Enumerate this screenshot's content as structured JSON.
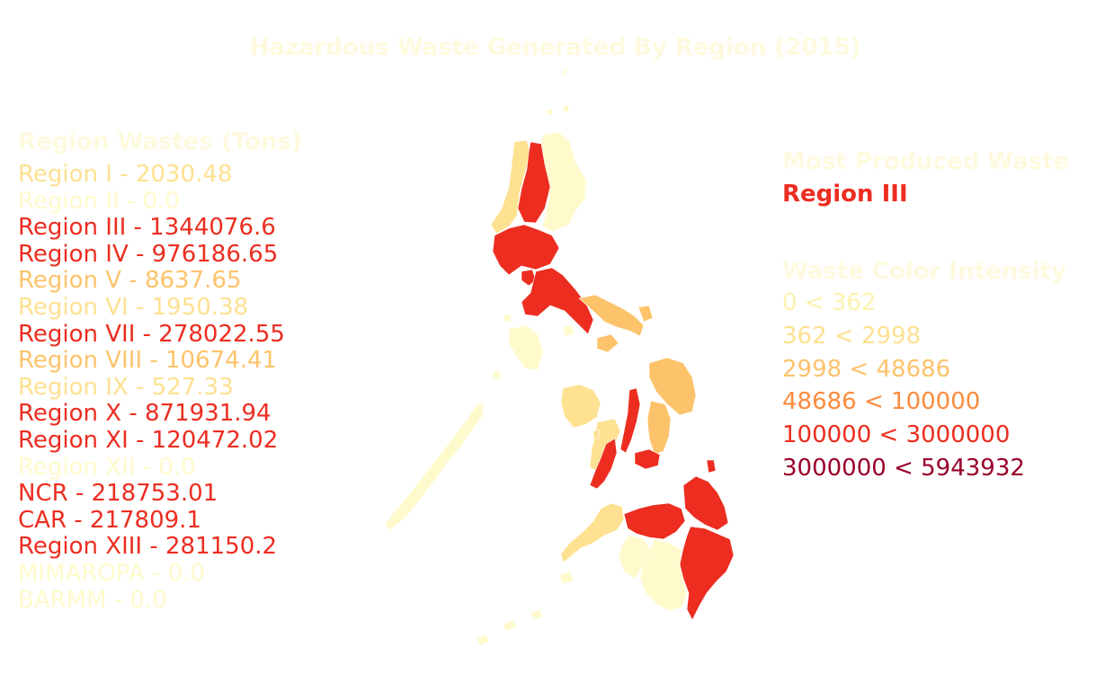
{
  "title": "Hazardous Waste Generated By Region (2015)",
  "palette": {
    "title": "#fefadf",
    "heading": "#fefadf",
    "zero": "#fffacc",
    "very_low": "#fef2b0",
    "low": "#fee191",
    "medium_low": "#fdc36b",
    "medium": "#fb8c3d",
    "high": "#ec2d20",
    "highest": "#99002a"
  },
  "left_panel": {
    "heading": "Region Wastes (Tons)",
    "regions": [
      {
        "label": "Region I - 2030.48",
        "color": "#fee191"
      },
      {
        "label": "Region II - 0.0",
        "color": "#fffacc"
      },
      {
        "label": "Region III - 1344076.6",
        "color": "#ec2d20"
      },
      {
        "label": "Region IV - 976186.65",
        "color": "#ec2d20"
      },
      {
        "label": "Region V - 8637.65",
        "color": "#fdc36b"
      },
      {
        "label": "Region VI - 1950.38",
        "color": "#fee191"
      },
      {
        "label": "Region VII - 278022.55",
        "color": "#ec2d20"
      },
      {
        "label": "Region VIII - 10674.41",
        "color": "#fdc36b"
      },
      {
        "label": "Region IX - 527.33",
        "color": "#fee191"
      },
      {
        "label": "Region X - 871931.94",
        "color": "#ec2d20"
      },
      {
        "label": "Region XI - 120472.02",
        "color": "#ec2d20"
      },
      {
        "label": "Region XII - 0.0",
        "color": "#fffacc"
      },
      {
        "label": "NCR - 218753.01",
        "color": "#ec2d20"
      },
      {
        "label": "CAR - 217809.1",
        "color": "#ec2d20"
      },
      {
        "label": "Region XIII - 281150.2",
        "color": "#ec2d20"
      },
      {
        "label": "MIMAROPA - 0.0",
        "color": "#fffacc"
      },
      {
        "label": "BARMM - 0.0",
        "color": "#fffacc"
      }
    ]
  },
  "right_panel": {
    "most_heading": "Most Produced Waste",
    "most_value": "Region III",
    "most_color": "#ec2d20",
    "intensity_heading": "Waste Color Intensity",
    "intensity_rows": [
      {
        "label": "0 < 362",
        "color": "#fef2b0"
      },
      {
        "label": "362 < 2998",
        "color": "#fee191"
      },
      {
        "label": "2998 < 48686",
        "color": "#fdc36b"
      },
      {
        "label": "48686 < 100000",
        "color": "#fb8c3d"
      },
      {
        "label": "100000 < 3000000",
        "color": "#ec2d20"
      },
      {
        "label": "3000000 < 5943932",
        "color": "#99002a"
      }
    ]
  }
}
